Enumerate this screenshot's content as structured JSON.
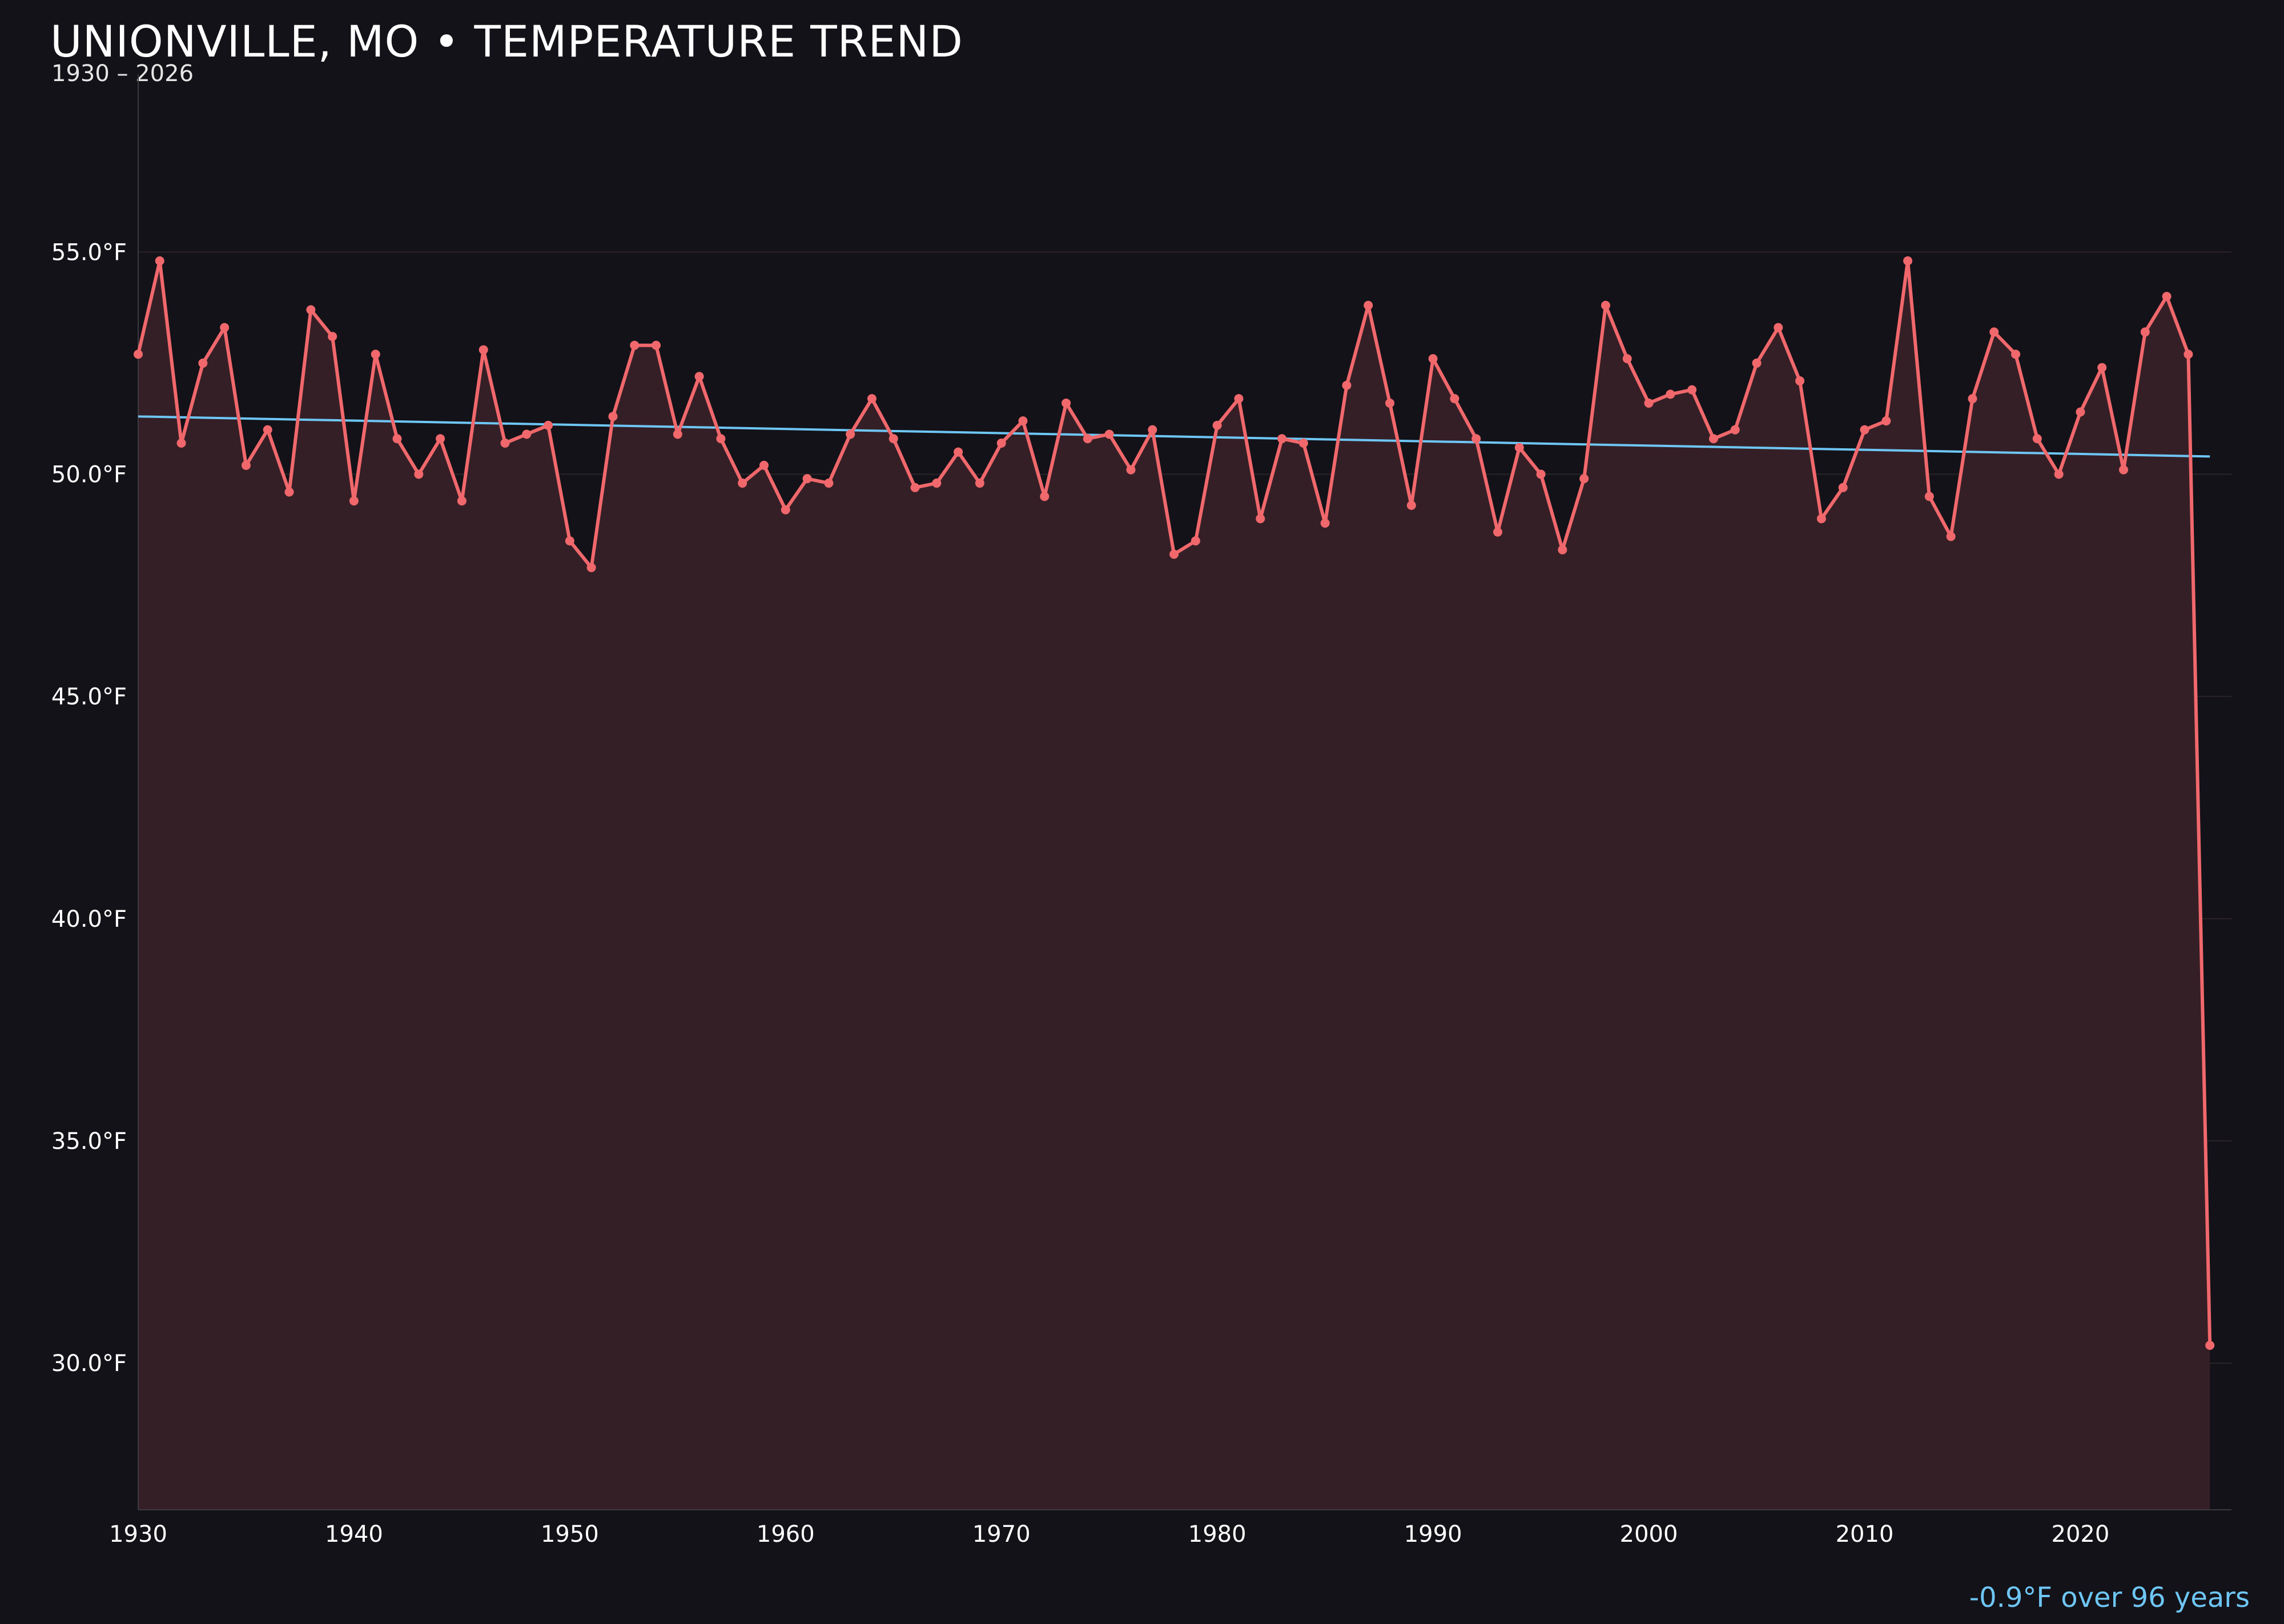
{
  "title": "UNIONVILLE, MO • TEMPERATURE TREND",
  "subtitle": "1930 – 2026",
  "footnote": "-0.9°F over 96 years",
  "colors": {
    "background": "#131218",
    "line": "#f0686c",
    "area": "#351f26",
    "trend": "#6ec6f5",
    "grid": "#2a2428"
  },
  "chart_data": {
    "type": "line",
    "x": [
      1930,
      1931,
      1932,
      1933,
      1934,
      1935,
      1936,
      1937,
      1938,
      1939,
      1940,
      1941,
      1942,
      1943,
      1944,
      1945,
      1946,
      1947,
      1948,
      1949,
      1950,
      1951,
      1952,
      1953,
      1954,
      1955,
      1956,
      1957,
      1958,
      1959,
      1960,
      1961,
      1962,
      1963,
      1964,
      1965,
      1966,
      1967,
      1968,
      1969,
      1970,
      1971,
      1972,
      1973,
      1974,
      1975,
      1976,
      1977,
      1978,
      1979,
      1980,
      1981,
      1982,
      1983,
      1984,
      1985,
      1986,
      1987,
      1988,
      1989,
      1990,
      1991,
      1992,
      1993,
      1994,
      1995,
      1996,
      1997,
      1998,
      1999,
      2000,
      2001,
      2002,
      2003,
      2004,
      2005,
      2006,
      2007,
      2008,
      2009,
      2010,
      2011,
      2012,
      2013,
      2014,
      2015,
      2016,
      2017,
      2018,
      2019,
      2020,
      2021,
      2022,
      2023,
      2024,
      2025,
      2026
    ],
    "y": [
      52.7,
      54.8,
      50.7,
      52.5,
      53.3,
      50.2,
      51.0,
      49.6,
      53.7,
      53.1,
      49.4,
      52.7,
      50.8,
      50.0,
      50.8,
      49.4,
      52.8,
      50.7,
      50.9,
      51.1,
      48.5,
      47.9,
      51.3,
      52.9,
      52.9,
      50.9,
      52.2,
      50.8,
      49.8,
      50.2,
      49.2,
      49.9,
      49.8,
      50.9,
      51.7,
      50.8,
      49.7,
      49.8,
      50.5,
      49.8,
      50.7,
      51.2,
      49.5,
      51.6,
      50.8,
      50.9,
      50.1,
      51.0,
      48.2,
      48.5,
      51.1,
      51.7,
      49.0,
      50.8,
      50.7,
      48.9,
      52.0,
      53.8,
      51.6,
      49.3,
      52.6,
      51.7,
      50.8,
      48.7,
      50.6,
      50.0,
      48.3,
      49.9,
      53.8,
      52.6,
      51.6,
      51.8,
      51.9,
      50.8,
      51.0,
      52.5,
      53.3,
      52.1,
      49.0,
      49.7,
      51.0,
      51.2,
      54.8,
      49.5,
      48.6,
      51.7,
      53.2,
      52.7,
      50.8,
      50.0,
      51.4,
      52.4,
      50.1,
      53.2,
      54.0,
      52.7,
      30.4
    ],
    "trend": {
      "start": [
        1930,
        51.3
      ],
      "end": [
        2026,
        50.4
      ]
    },
    "xlim": [
      1930,
      2027
    ],
    "ylim": [
      26.7,
      59.0
    ],
    "x_ticks": [
      1930,
      1940,
      1950,
      1960,
      1970,
      1980,
      1990,
      2000,
      2010,
      2020
    ],
    "x_tick_labels": [
      "1930",
      "1940",
      "1950",
      "1960",
      "1970",
      "1980",
      "1990",
      "2000",
      "2010",
      "2020"
    ],
    "y_ticks": [
      30,
      35,
      40,
      45,
      50,
      55
    ],
    "y_tick_labels": [
      "30.0°F",
      "35.0°F",
      "40.0°F",
      "45.0°F",
      "50.0°F",
      "55.0°F"
    ],
    "grid": true
  }
}
